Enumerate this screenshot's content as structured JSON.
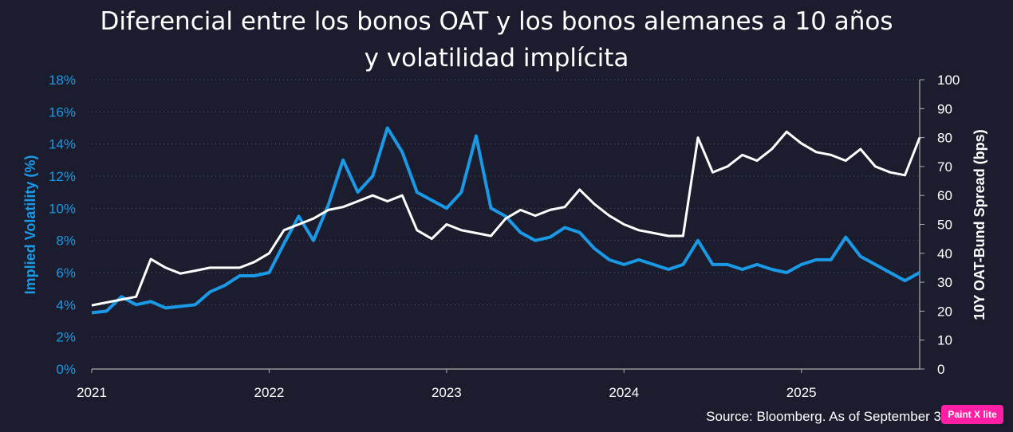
{
  "title_line1": "Diferencial entre los bonos OAT y los bonos alemanes a 10 años",
  "title_line2": "y volatilidad implícita",
  "source": "Source: Bloomberg. As of September 3",
  "badge": "Paint X lite",
  "colors": {
    "background": "#1b1d2e",
    "vol_series": "#1a9ae6",
    "spread_series": "#ffffff",
    "left_axis_label": "#1a9ae6"
  },
  "chart_data": {
    "type": "line",
    "ylabel": "Implied Volatility (%)",
    "y2label": "10Y OAT-Bund Spread (bps)",
    "x_ticks": [
      "2021",
      "2022",
      "2023",
      "2024",
      "2025"
    ],
    "xlim": [
      "2021-01",
      "2025-09"
    ],
    "ylim": [
      0,
      18
    ],
    "y2lim": [
      0,
      100
    ],
    "y_ticks": [
      "0%",
      "2%",
      "4%",
      "6%",
      "8%",
      "10%",
      "12%",
      "14%",
      "16%",
      "18%"
    ],
    "y2_ticks": [
      "0",
      "10",
      "20",
      "30",
      "40",
      "50",
      "60",
      "70",
      "80",
      "90",
      "100"
    ],
    "series": [
      {
        "name": "Implied Volatility (%)",
        "axis": "left",
        "x": [
          "2021-01",
          "2021-02",
          "2021-03",
          "2021-04",
          "2021-05",
          "2021-06",
          "2021-07",
          "2021-08",
          "2021-09",
          "2021-10",
          "2021-11",
          "2021-12",
          "2022-01",
          "2022-02",
          "2022-03",
          "2022-04",
          "2022-05",
          "2022-06",
          "2022-07",
          "2022-08",
          "2022-09",
          "2022-10",
          "2022-11",
          "2022-12",
          "2023-01",
          "2023-02",
          "2023-03",
          "2023-04",
          "2023-05",
          "2023-06",
          "2023-07",
          "2023-08",
          "2023-09",
          "2023-10",
          "2023-11",
          "2023-12",
          "2024-01",
          "2024-02",
          "2024-03",
          "2024-04",
          "2024-05",
          "2024-06",
          "2024-07",
          "2024-08",
          "2024-09",
          "2024-10",
          "2024-11",
          "2024-12",
          "2025-01",
          "2025-02",
          "2025-03",
          "2025-04",
          "2025-05",
          "2025-06",
          "2025-07",
          "2025-08",
          "2025-09"
        ],
        "values": [
          3.5,
          3.6,
          4.5,
          4.0,
          4.2,
          3.8,
          3.9,
          4.0,
          4.8,
          5.2,
          5.8,
          5.8,
          6.0,
          7.8,
          9.5,
          8.0,
          10.2,
          13.0,
          11.0,
          12.0,
          15.0,
          13.5,
          11.0,
          10.5,
          10.0,
          11.0,
          14.5,
          10.0,
          9.5,
          8.5,
          8.0,
          8.2,
          8.8,
          8.5,
          7.5,
          6.8,
          6.5,
          6.8,
          6.5,
          6.2,
          6.5,
          8.0,
          6.5,
          6.5,
          6.2,
          6.5,
          6.2,
          6.0,
          6.5,
          6.8,
          6.8,
          8.2,
          7.0,
          6.5,
          6.0,
          5.5,
          6.0
        ]
      },
      {
        "name": "10Y OAT-Bund Spread (bps)",
        "axis": "right",
        "x": [
          "2021-01",
          "2021-02",
          "2021-03",
          "2021-04",
          "2021-05",
          "2021-06",
          "2021-07",
          "2021-08",
          "2021-09",
          "2021-10",
          "2021-11",
          "2021-12",
          "2022-01",
          "2022-02",
          "2022-03",
          "2022-04",
          "2022-05",
          "2022-06",
          "2022-07",
          "2022-08",
          "2022-09",
          "2022-10",
          "2022-11",
          "2022-12",
          "2023-01",
          "2023-02",
          "2023-03",
          "2023-04",
          "2023-05",
          "2023-06",
          "2023-07",
          "2023-08",
          "2023-09",
          "2023-10",
          "2023-11",
          "2023-12",
          "2024-01",
          "2024-02",
          "2024-03",
          "2024-04",
          "2024-05",
          "2024-06",
          "2024-07",
          "2024-08",
          "2024-09",
          "2024-10",
          "2024-11",
          "2024-12",
          "2025-01",
          "2025-02",
          "2025-03",
          "2025-04",
          "2025-05",
          "2025-06",
          "2025-07",
          "2025-08",
          "2025-09"
        ],
        "values": [
          22,
          23,
          24,
          25,
          38,
          35,
          33,
          34,
          35,
          35,
          35,
          37,
          40,
          48,
          50,
          52,
          55,
          56,
          58,
          60,
          58,
          60,
          48,
          45,
          50,
          48,
          47,
          46,
          52,
          55,
          53,
          55,
          56,
          62,
          57,
          53,
          50,
          48,
          47,
          46,
          46,
          80,
          68,
          70,
          74,
          72,
          76,
          82,
          78,
          75,
          74,
          72,
          76,
          70,
          68,
          67,
          80
        ]
      }
    ]
  }
}
